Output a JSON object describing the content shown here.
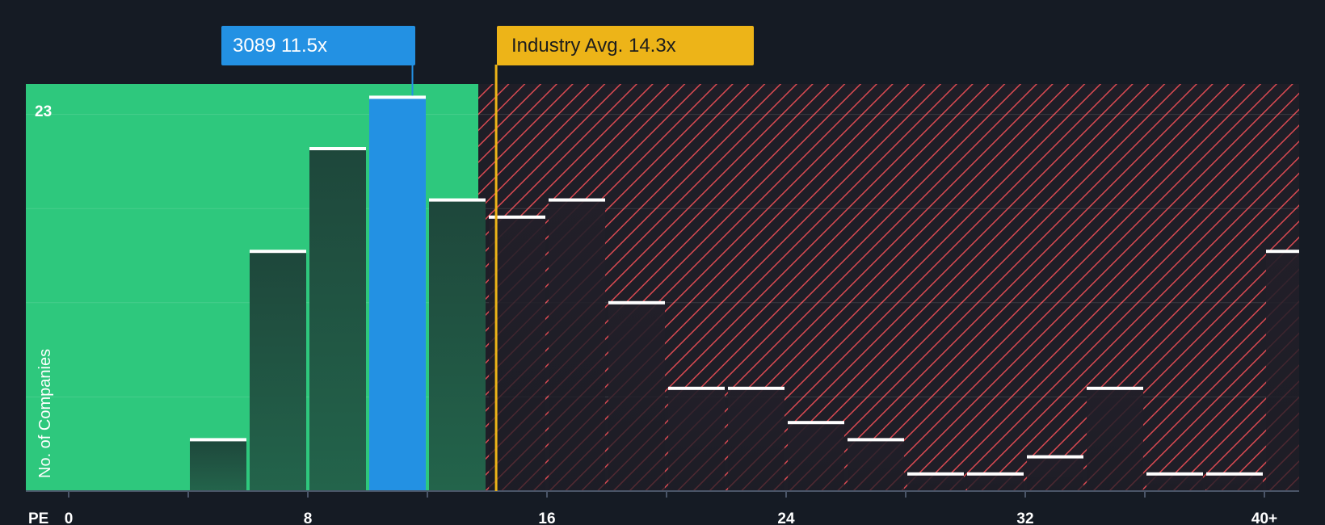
{
  "chart_data": {
    "type": "bar",
    "metric_label": "PE",
    "ylabel": "No. of Companies",
    "y_max_label": "23",
    "ylim": [
      0,
      23.8
    ],
    "x_ticks": [
      {
        "value": 0,
        "label": "0"
      },
      {
        "value": 8,
        "label": "8"
      },
      {
        "value": 16,
        "label": "16"
      },
      {
        "value": 24,
        "label": "24"
      },
      {
        "value": 32,
        "label": "32"
      },
      {
        "value": 40,
        "label": "40+"
      }
    ],
    "bins": [
      {
        "start": 4,
        "end": 6,
        "value": 3,
        "highlight": false
      },
      {
        "start": 6,
        "end": 8,
        "value": 14,
        "highlight": false
      },
      {
        "start": 8,
        "end": 10,
        "value": 20,
        "highlight": false
      },
      {
        "start": 10,
        "end": 12,
        "value": 23,
        "highlight": true
      },
      {
        "start": 12,
        "end": 14,
        "value": 17,
        "highlight": false
      },
      {
        "start": 14,
        "end": 16,
        "value": 16,
        "highlight": false
      },
      {
        "start": 16,
        "end": 18,
        "value": 17,
        "highlight": false
      },
      {
        "start": 18,
        "end": 20,
        "value": 11,
        "highlight": false
      },
      {
        "start": 20,
        "end": 22,
        "value": 6,
        "highlight": false
      },
      {
        "start": 22,
        "end": 24,
        "value": 6,
        "highlight": false
      },
      {
        "start": 24,
        "end": 26,
        "value": 4,
        "highlight": false
      },
      {
        "start": 26,
        "end": 28,
        "value": 3,
        "highlight": false
      },
      {
        "start": 28,
        "end": 30,
        "value": 1,
        "highlight": false
      },
      {
        "start": 30,
        "end": 32,
        "value": 1,
        "highlight": false
      },
      {
        "start": 32,
        "end": 34,
        "value": 2,
        "highlight": false
      },
      {
        "start": 34,
        "end": 36,
        "value": 6,
        "highlight": false
      },
      {
        "start": 36,
        "end": 38,
        "value": 1,
        "highlight": false
      },
      {
        "start": 38,
        "end": 40,
        "value": 1,
        "highlight": false
      },
      {
        "start": 40,
        "end": 42,
        "value": 14,
        "highlight": false
      }
    ],
    "company": {
      "ticker": "3089",
      "pe": 11.5,
      "label": "3089 11.5x"
    },
    "industry_avg": {
      "pe": 14.3,
      "label": "Industry Avg. 14.3x"
    },
    "fair_region_end": 13.6
  },
  "colors": {
    "background": "#151b24",
    "good_zone": "#2ec87d",
    "bad_hatch": "#d94a52",
    "bar_dark": "#1e4a3d",
    "highlight_bar": "#2391e3",
    "industry": "#edb418",
    "cap": "#ffffff"
  }
}
